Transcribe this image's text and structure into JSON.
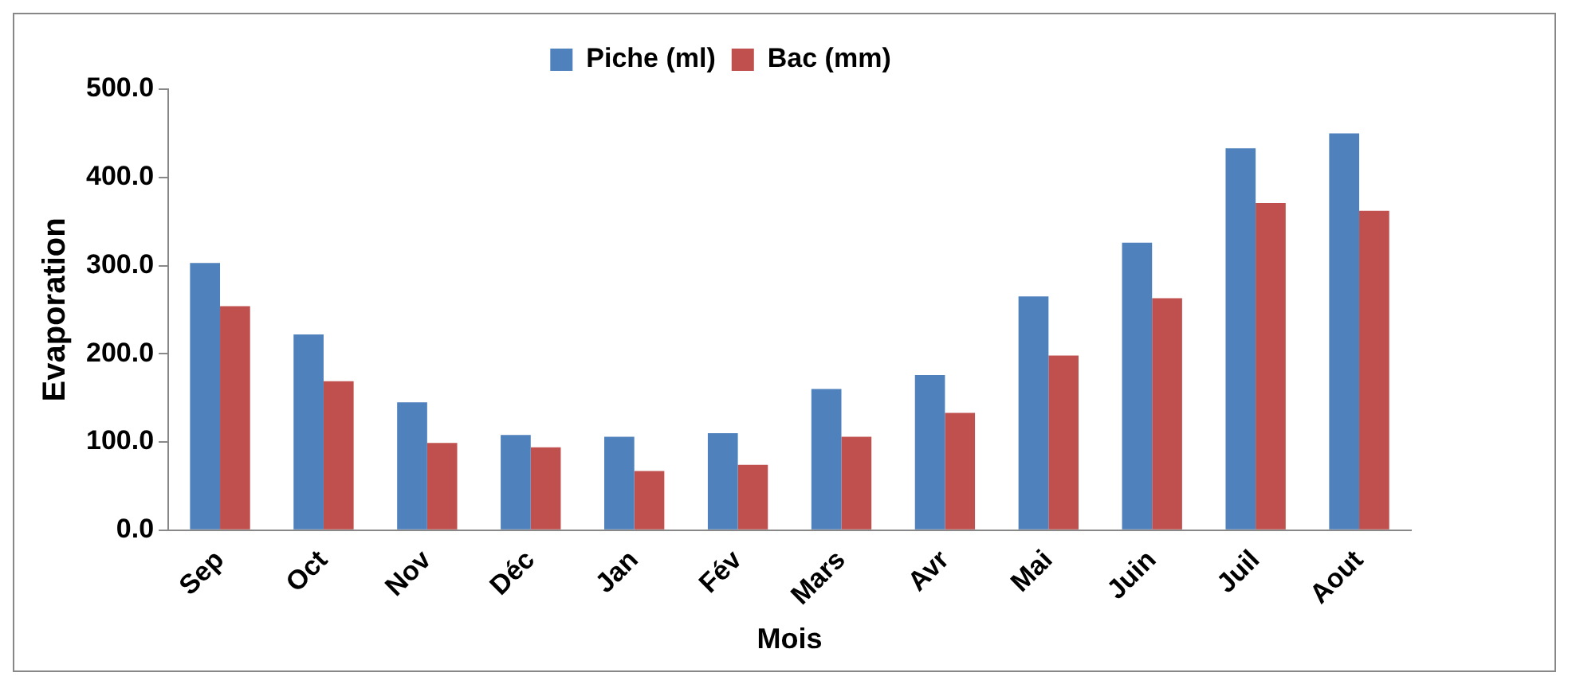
{
  "chart_data": {
    "type": "bar",
    "xlabel": "Mois",
    "ylabel": "Evaporation",
    "categories": [
      "Sep",
      "Oct",
      "Nov",
      "Déc",
      "Jan",
      "Fév",
      "Mars",
      "Avr",
      "Mai",
      "Juin",
      "Juil",
      "Aout"
    ],
    "series": [
      {
        "name": "Piche (ml)",
        "color": "#4f81bd",
        "values": [
          303,
          222,
          145,
          108,
          106,
          110,
          160,
          176,
          265,
          326,
          433,
          450
        ]
      },
      {
        "name": "Bac (mm)",
        "color": "#c0504d",
        "values": [
          254,
          169,
          99,
          94,
          67,
          74,
          106,
          133,
          198,
          263,
          371,
          362
        ]
      }
    ],
    "ylim": [
      0,
      500
    ],
    "yticks": [
      {
        "value": 0,
        "label": "0.0"
      },
      {
        "value": 100,
        "label": "100.0"
      },
      {
        "value": 200,
        "label": "200.0"
      },
      {
        "value": 300,
        "label": "300.0"
      },
      {
        "value": 400,
        "label": "400.0"
      },
      {
        "value": 500,
        "label": "500.0"
      }
    ],
    "grid": false,
    "legend": "top"
  }
}
